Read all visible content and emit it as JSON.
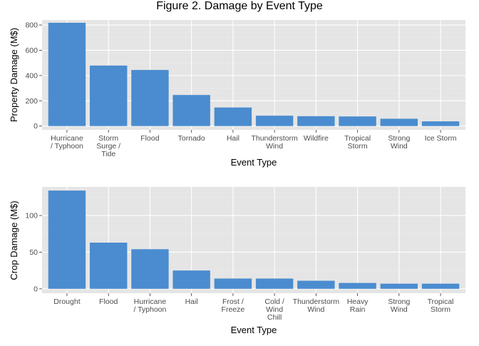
{
  "figure_title": "Figure 2. Damage by Event Type",
  "colors": {
    "bar": "#4a8ccf",
    "panel": "#e5e5e5",
    "grid_major": "#ffffff",
    "grid_minor": "#ededed",
    "tick_text": "#4d4d4d"
  },
  "chart_data": [
    {
      "type": "bar",
      "title": "",
      "xlabel": "Event Type",
      "ylabel": "Property Damage (M$)",
      "ylim": [
        -30,
        840
      ],
      "yticks": [
        0,
        200,
        400,
        600,
        800
      ],
      "grid": true,
      "categories": [
        [
          "Hurricane",
          "/ Typhoon"
        ],
        [
          "Storm",
          "Surge /",
          "Tide"
        ],
        [
          "Flood"
        ],
        [
          "Tornado"
        ],
        [
          "Hail"
        ],
        [
          "Thunderstorm",
          "Wind"
        ],
        [
          "Wildfire"
        ],
        [
          "Tropical",
          "Storm"
        ],
        [
          "Strong",
          "Wind"
        ],
        [
          "Ice Storm"
        ]
      ],
      "values": [
        818,
        479,
        444,
        246,
        147,
        82,
        78,
        76,
        58,
        37
      ]
    },
    {
      "type": "bar",
      "title": "",
      "xlabel": "Event Type",
      "ylabel": "Crop Damage (M$)",
      "ylim": [
        -6,
        139
      ],
      "yticks": [
        0,
        50,
        100
      ],
      "grid": true,
      "categories": [
        [
          "Drought"
        ],
        [
          "Flood"
        ],
        [
          "Hurricane",
          "/ Typhoon"
        ],
        [
          "Hail"
        ],
        [
          "Frost /",
          "Freeze"
        ],
        [
          "Cold /",
          "Wind",
          "Chill"
        ],
        [
          "Thunderstorm",
          "Wind"
        ],
        [
          "Heavy",
          "Rain"
        ],
        [
          "Strong",
          "Wind"
        ],
        [
          "Tropical",
          "Storm"
        ]
      ],
      "values": [
        134,
        63,
        54,
        25,
        14,
        14,
        11,
        8,
        7,
        7
      ]
    }
  ]
}
